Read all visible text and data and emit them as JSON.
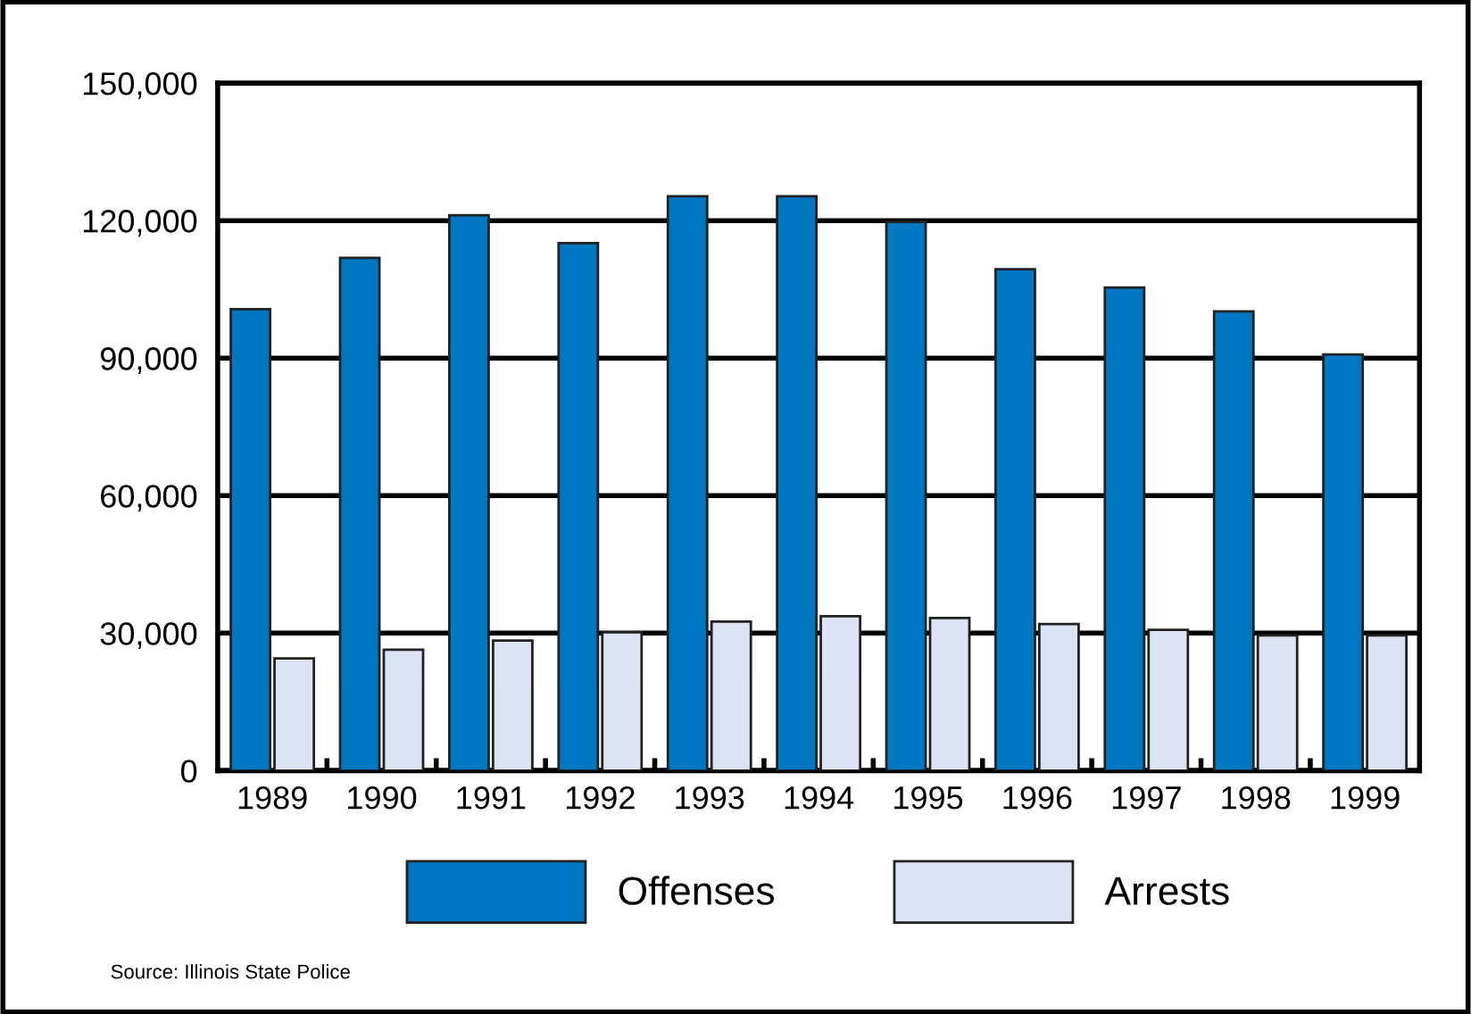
{
  "chart_data": {
    "type": "bar",
    "categories": [
      "1989",
      "1990",
      "1991",
      "1992",
      "1993",
      "1994",
      "1995",
      "1996",
      "1997",
      "1998",
      "1999"
    ],
    "series": [
      {
        "name": "Offenses",
        "color": "#0077c0",
        "values": [
          100700,
          111900,
          121200,
          115100,
          125300,
          125300,
          119700,
          109400,
          105400,
          100200,
          90800
        ]
      },
      {
        "name": "Arrests",
        "color": "#dce3f3",
        "values": [
          24500,
          26400,
          28400,
          30200,
          32500,
          33700,
          33300,
          32000,
          30700,
          29500,
          29500
        ]
      }
    ],
    "ylim": [
      0,
      150000
    ],
    "yticks": [
      {
        "value": 0,
        "label": "0"
      },
      {
        "value": 30000,
        "label": "30,000"
      },
      {
        "value": 60000,
        "label": "60,000"
      },
      {
        "value": 90000,
        "label": "90,000"
      },
      {
        "value": 120000,
        "label": "120,000"
      },
      {
        "value": 150000,
        "label": "150,000"
      }
    ],
    "grid": "y",
    "legend": "bottom",
    "annotations": [
      "Source: Illinois State Police"
    ]
  }
}
